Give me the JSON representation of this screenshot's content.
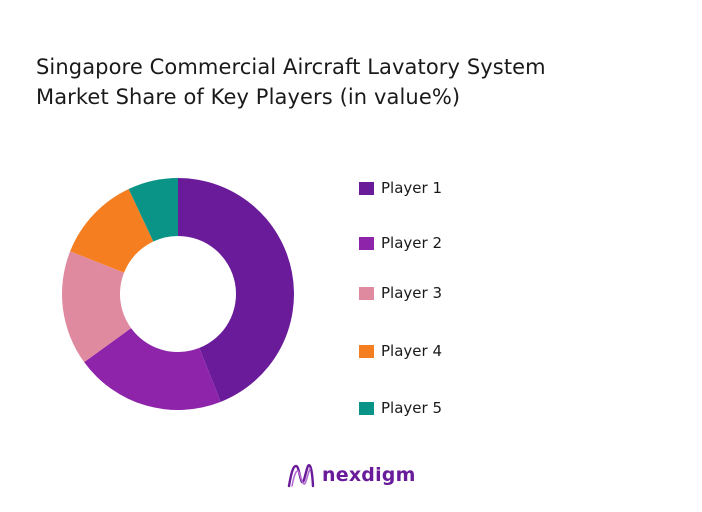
{
  "title_line1": "Singapore Commercial Aircraft Lavatory System",
  "title_line2": "Market Share of Key Players (in value%)",
  "chart_data": {
    "type": "pie",
    "donut": true,
    "title": "Singapore Commercial Aircraft Lavatory System Market Share of Key Players (in value%)",
    "categories": [
      "Player 1",
      "Player 2",
      "Player 3",
      "Player 4",
      "Player 5"
    ],
    "values": [
      44,
      21,
      16,
      12,
      7
    ],
    "colors": [
      "#6a1b9a",
      "#8e24aa",
      "#e08aa0",
      "#f57f20",
      "#0a9488"
    ],
    "legend": "right"
  },
  "logo": {
    "text": "nexdigm",
    "color": "#6a1b9a",
    "icon": "nexdigm-logo-icon"
  }
}
